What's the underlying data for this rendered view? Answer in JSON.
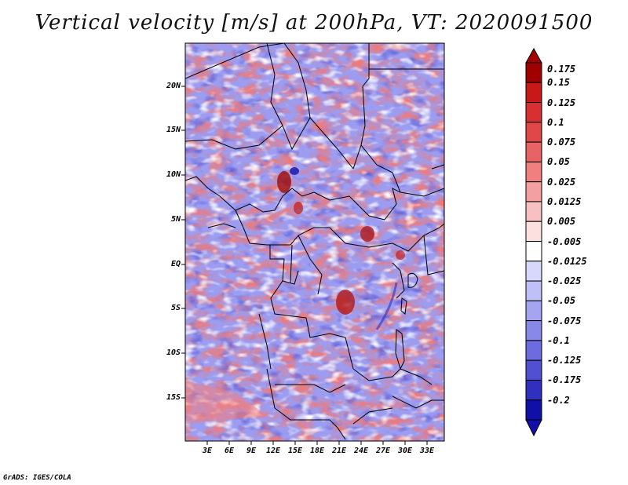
{
  "title": "Vertical velocity [m/s] at 200hPa, VT: 2020091500",
  "map": {
    "lat_labels": [
      "20N",
      "15N",
      "10N",
      "5N",
      "EQ",
      "5S",
      "10S",
      "15S"
    ],
    "lon_labels": [
      "3E",
      "6E",
      "9E",
      "12E",
      "15E",
      "18E",
      "21E",
      "24E",
      "27E",
      "30E",
      "33E"
    ],
    "lat_range": [
      -20,
      25
    ],
    "lon_range": [
      0,
      35
    ]
  },
  "colorbar": {
    "labels": [
      "0.175",
      "0.15",
      "0.125",
      "0.1",
      "0.075",
      "0.05",
      "0.025",
      "0.0125",
      "0.005",
      "-0.005",
      "-0.0125",
      "-0.025",
      "-0.05",
      "-0.075",
      "-0.1",
      "-0.125",
      "-0.175",
      "-0.2"
    ],
    "colors": [
      "#a00000",
      "#c81818",
      "#d83030",
      "#e04848",
      "#e86464",
      "#f08080",
      "#f5a0a0",
      "#f8c0c0",
      "#fce0e0",
      "#ffffff",
      "#d8d8fc",
      "#c0c0f8",
      "#a4a4f0",
      "#8888e8",
      "#6c6ce0",
      "#5050d0",
      "#3030c0",
      "#1010a8"
    ]
  },
  "footer": "GrADS: IGES/COLA"
}
